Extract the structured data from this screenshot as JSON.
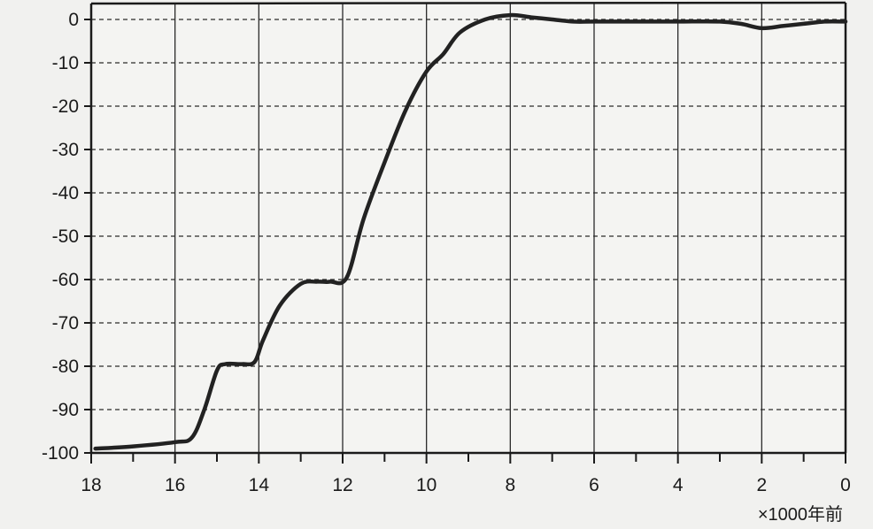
{
  "chart_data": {
    "type": "line",
    "x_unit_label": "×1000年前",
    "xlim": [
      18,
      0
    ],
    "ylim": [
      -100,
      0
    ],
    "x_ticks": [
      18,
      16,
      14,
      12,
      10,
      8,
      6,
      4,
      2,
      0
    ],
    "x_tick_labels": [
      "18",
      "16",
      "14",
      "12",
      "10",
      "8",
      "6",
      "4",
      "2",
      "0"
    ],
    "y_ticks": [
      0,
      -10,
      -20,
      -30,
      -40,
      -50,
      -60,
      -70,
      -80,
      -90,
      -100
    ],
    "y_tick_labels": [
      "0",
      "-10",
      "-20",
      "-30",
      "-40",
      "-50",
      "-60",
      "-70",
      "-80",
      "-90",
      "-100"
    ],
    "grid": {
      "vertical": "solid",
      "horizontal": "dashed"
    },
    "series": [
      {
        "color": "#222222",
        "x": [
          17.9,
          17.0,
          16.0,
          15.6,
          15.3,
          15.0,
          14.8,
          14.4,
          14.1,
          13.9,
          13.5,
          13.0,
          12.6,
          12.3,
          11.9,
          11.5,
          11.0,
          10.5,
          10.0,
          9.6,
          9.2,
          8.6,
          8.0,
          7.5,
          7.0,
          6.5,
          6.0,
          5.0,
          4.0,
          3.0,
          2.5,
          2.0,
          1.5,
          1.0,
          0.5,
          0.0
        ],
        "y": [
          -99,
          -98.5,
          -97.5,
          -96.5,
          -90,
          -81,
          -79.5,
          -79.5,
          -79,
          -74,
          -66,
          -61,
          -60.5,
          -60.5,
          -59.5,
          -46,
          -33,
          -21,
          -12,
          -8,
          -3,
          0,
          1,
          0.5,
          0,
          -0.5,
          -0.5,
          -0.5,
          -0.5,
          -0.5,
          -1,
          -2,
          -1.5,
          -1,
          -0.5,
          -0.5
        ]
      }
    ]
  }
}
